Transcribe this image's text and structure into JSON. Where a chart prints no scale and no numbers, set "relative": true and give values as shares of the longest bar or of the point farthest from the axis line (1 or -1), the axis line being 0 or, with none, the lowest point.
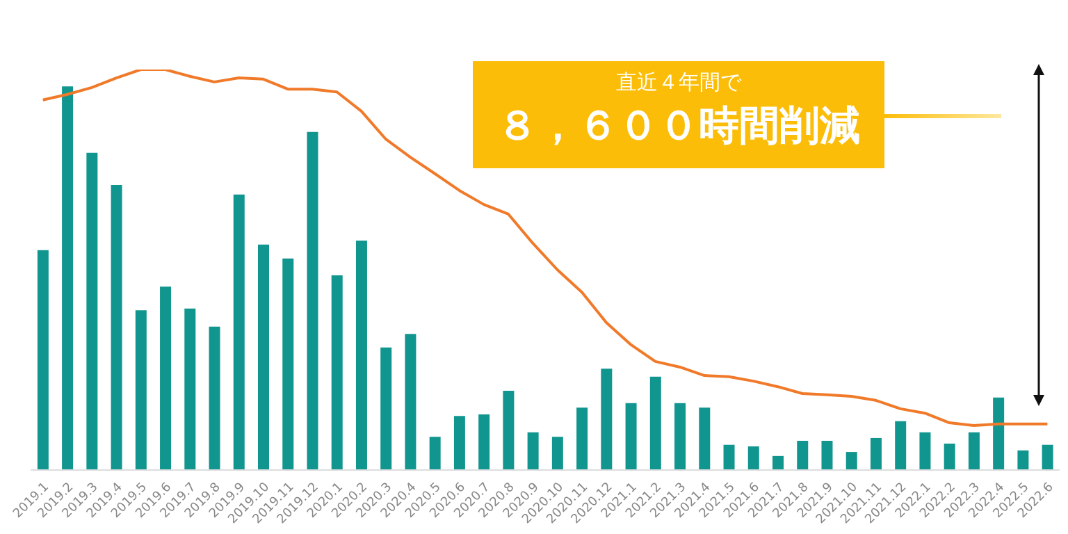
{
  "chart_data": {
    "type": "bar",
    "relative": true,
    "marker": "none",
    "categories": [
      "2019.1",
      "2019.2",
      "2019.3",
      "2019.4",
      "2019.5",
      "2019.6",
      "2019.7",
      "2019.8",
      "2019.9",
      "2019.10",
      "2019.11",
      "2019.12",
      "2020.1",
      "2020.2",
      "2020.3",
      "2020.4",
      "2020.5",
      "2020.6",
      "2020.7",
      "2020.8",
      "2020.9",
      "2020.10",
      "2020.11",
      "2020.12",
      "2021.1",
      "2021.2",
      "2021.3",
      "2021.4",
      "2021.5",
      "2021.6",
      "2021.7",
      "2021.8",
      "2021.9",
      "2021.10",
      "2021.11",
      "2021.12",
      "2022.1",
      "2022.2",
      "2022.3",
      "2022.4",
      "2022.5",
      "2022.6"
    ],
    "series": [
      {
        "color": "#11968f",
        "values": [
          0.549,
          0.958,
          0.792,
          0.712,
          0.399,
          0.458,
          0.403,
          0.358,
          0.688,
          0.563,
          0.528,
          0.844,
          0.486,
          0.573,
          0.306,
          0.34,
          0.083,
          0.135,
          0.139,
          0.198,
          0.094,
          0.083,
          0.156,
          0.253,
          0.167,
          0.233,
          0.167,
          0.156,
          0.063,
          0.059,
          0.035,
          0.073,
          0.073,
          0.045,
          0.08,
          0.122,
          0.094,
          0.066,
          0.094,
          0.181,
          0.049,
          0.063
        ]
      },
      {
        "type": "line",
        "color": "#f07a2a",
        "values": [
          0.924,
          0.938,
          0.955,
          0.979,
          1,
          1,
          0.983,
          0.969,
          0.979,
          0.976,
          0.951,
          0.951,
          0.944,
          0.896,
          0.826,
          0.781,
          0.74,
          0.698,
          0.663,
          0.639,
          0.566,
          0.5,
          0.444,
          0.368,
          0.313,
          0.271,
          0.257,
          0.236,
          0.233,
          0.222,
          0.208,
          0.191,
          0.188,
          0.184,
          0.174,
          0.153,
          0.142,
          0.118,
          0.111,
          0.115,
          0.115,
          0.115
        ]
      }
    ],
    "annotations": [
      "直近４年間で",
      "８，６００時間削減"
    ]
  }
}
